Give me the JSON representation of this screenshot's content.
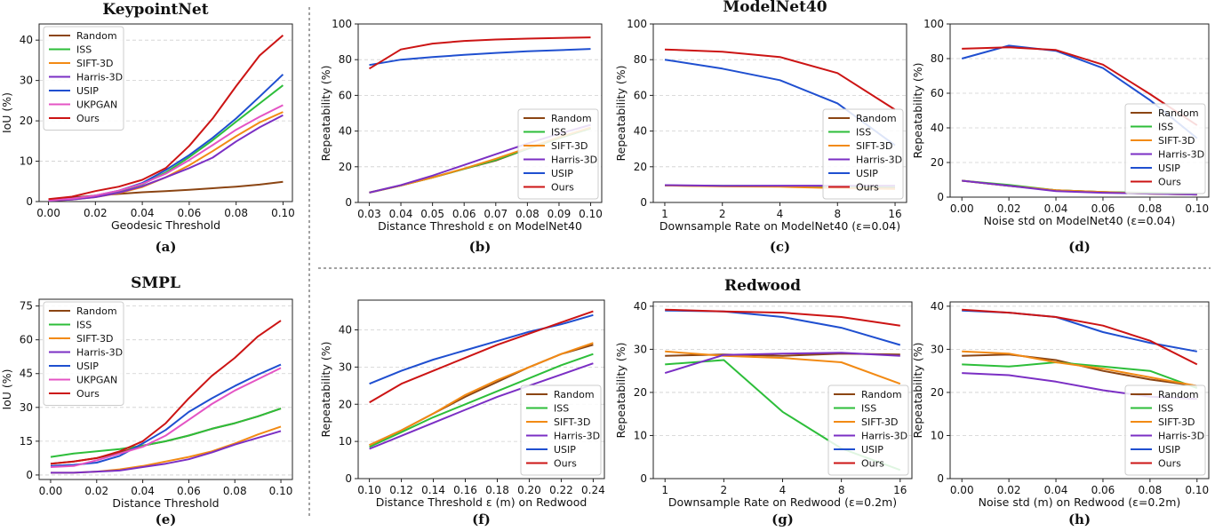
{
  "colors": {
    "Random": "#8B4513",
    "ISS": "#2DBE3A",
    "SIFT-3D": "#F28A14",
    "Harris-3D": "#7B2FC4",
    "USIP": "#1F4FD0",
    "UKPGAN": "#E454C4",
    "Ours": "#CC1414"
  },
  "section_titles": {
    "keypointnet": "KeypointNet",
    "modelnet40": "ModelNet40",
    "smpl": "SMPL",
    "redwood": "Redwood"
  },
  "chart_data": [
    {
      "id": "a",
      "type": "line",
      "caption": "(a)",
      "title": "",
      "xlabel": "Geodesic Threshold",
      "ylabel": "IoU (%)",
      "x": [
        0.0,
        0.01,
        0.02,
        0.03,
        0.04,
        0.05,
        0.06,
        0.07,
        0.08,
        0.09,
        0.1
      ],
      "xticks": [
        "0.00",
        "0.02",
        "0.04",
        "0.06",
        "0.08",
        "0.10"
      ],
      "xtick_values": [
        0.0,
        0.02,
        0.04,
        0.06,
        0.08,
        0.1
      ],
      "xlim": [
        -0.004,
        0.104
      ],
      "yticks": [
        "0",
        "10",
        "20",
        "30",
        "40"
      ],
      "ytick_values": [
        0,
        10,
        20,
        30,
        40
      ],
      "ylim": [
        0,
        44
      ],
      "legend_position": "top-left",
      "series": [
        {
          "name": "Random",
          "values": [
            0.5,
            1.0,
            1.5,
            1.9,
            2.3,
            2.6,
            2.9,
            3.3,
            3.7,
            4.2,
            4.9
          ]
        },
        {
          "name": "ISS",
          "values": [
            0.2,
            0.6,
            1.4,
            2.6,
            4.3,
            7.2,
            11.0,
            15.2,
            19.8,
            24.3,
            28.8
          ]
        },
        {
          "name": "SIFT-3D",
          "values": [
            0.2,
            0.5,
            1.1,
            2.1,
            3.6,
            6.0,
            9.0,
            12.5,
            16.2,
            19.6,
            22.2
          ]
        },
        {
          "name": "Harris-3D",
          "values": [
            0.2,
            0.5,
            1.1,
            2.2,
            3.8,
            6.0,
            8.3,
            10.9,
            14.9,
            18.4,
            21.4
          ]
        },
        {
          "name": "USIP",
          "values": [
            0.3,
            0.7,
            1.5,
            2.7,
            4.6,
            7.8,
            11.5,
            15.8,
            20.6,
            26.0,
            31.5
          ]
        },
        {
          "name": "UKPGAN",
          "values": [
            0.3,
            0.7,
            1.5,
            2.7,
            4.4,
            6.9,
            10.3,
            14.0,
            17.8,
            21.0,
            23.9
          ]
        },
        {
          "name": "Ours",
          "values": [
            0.6,
            1.2,
            2.6,
            3.7,
            5.4,
            8.3,
            13.8,
            20.6,
            28.6,
            36.2,
            41.2
          ]
        }
      ]
    },
    {
      "id": "b",
      "type": "line",
      "caption": "(b)",
      "title": "",
      "xlabel": "Distance Threshold ε on ModelNet40",
      "ylabel": "Repeatability (%)",
      "x": [
        0.03,
        0.04,
        0.05,
        0.06,
        0.07,
        0.08,
        0.09,
        0.1
      ],
      "xticks": [
        "0.03",
        "0.04",
        "0.05",
        "0.06",
        "0.07",
        "0.08",
        "0.09",
        "0.10"
      ],
      "xtick_values": [
        0.03,
        0.04,
        0.05,
        0.06,
        0.07,
        0.08,
        0.09,
        0.1
      ],
      "xlim": [
        0.0265,
        0.1035
      ],
      "yticks": [
        "0",
        "20",
        "40",
        "60",
        "80",
        "100"
      ],
      "ytick_values": [
        0,
        20,
        40,
        60,
        80,
        100
      ],
      "ylim": [
        0,
        100
      ],
      "legend_position": "lower-right",
      "series": [
        {
          "name": "Random",
          "values": [
            5.5,
            9.5,
            14.0,
            18.8,
            23.5,
            30.0,
            36.0,
            41.5
          ]
        },
        {
          "name": "ISS",
          "values": [
            5.5,
            9.5,
            14.0,
            18.8,
            23.8,
            30.0,
            36.0,
            41.5
          ]
        },
        {
          "name": "SIFT-3D",
          "values": [
            5.5,
            9.5,
            14.0,
            19.0,
            24.5,
            30.5,
            36.5,
            42.0
          ]
        },
        {
          "name": "Harris-3D",
          "values": [
            5.5,
            9.7,
            15.0,
            21.0,
            27.0,
            33.0,
            38.5,
            43.5
          ]
        },
        {
          "name": "USIP",
          "values": [
            77.0,
            80.0,
            81.5,
            82.7,
            83.8,
            84.7,
            85.3,
            86.0
          ]
        },
        {
          "name": "Ours",
          "values": [
            75.0,
            85.7,
            89.0,
            90.5,
            91.3,
            91.8,
            92.2,
            92.5
          ]
        }
      ]
    },
    {
      "id": "c",
      "type": "line",
      "caption": "(c)",
      "title": "",
      "xlabel": "Downsample Rate on ModelNet40 (ε=0.04)",
      "ylabel": "Repeatability (%)",
      "x": [
        0,
        1,
        2,
        3,
        4
      ],
      "xticks": [
        "1",
        "2",
        "4",
        "8",
        "16"
      ],
      "xtick_values": [
        0,
        1,
        2,
        3,
        4
      ],
      "xlim": [
        -0.2,
        4.2
      ],
      "yticks": [
        "0",
        "20",
        "40",
        "60",
        "80",
        "100"
      ],
      "ytick_values": [
        0,
        20,
        40,
        60,
        80,
        100
      ],
      "ylim": [
        0,
        100
      ],
      "legend_position": "lower-right",
      "series": [
        {
          "name": "Random",
          "values": [
            9.5,
            9.2,
            9.0,
            8.5,
            8.0
          ]
        },
        {
          "name": "ISS",
          "values": [
            9.5,
            9.3,
            9.2,
            9.0,
            9.0
          ]
        },
        {
          "name": "SIFT-3D",
          "values": [
            9.5,
            9.0,
            8.8,
            8.0,
            7.5
          ]
        },
        {
          "name": "Harris-3D",
          "values": [
            9.7,
            9.3,
            9.4,
            9.4,
            9.4
          ]
        },
        {
          "name": "USIP",
          "values": [
            80.0,
            75.0,
            68.5,
            55.5,
            32.0
          ]
        },
        {
          "name": "Ours",
          "values": [
            85.7,
            84.5,
            81.5,
            72.5,
            52.0
          ]
        }
      ]
    },
    {
      "id": "d",
      "type": "line",
      "caption": "(d)",
      "title": "",
      "xlabel": "Noise std on ModelNet40 (ε=0.04)",
      "ylabel": "Repeatability (%)",
      "x": [
        0.0,
        0.02,
        0.04,
        0.06,
        0.08,
        0.1
      ],
      "xticks": [
        "0.00",
        "0.02",
        "0.04",
        "0.06",
        "0.08",
        "0.10"
      ],
      "xtick_values": [
        0.0,
        0.02,
        0.04,
        0.06,
        0.08,
        0.1
      ],
      "xlim": [
        -0.005,
        0.105
      ],
      "yticks": [
        "0",
        "20",
        "40",
        "60",
        "80",
        "100"
      ],
      "ytick_values": [
        0,
        20,
        40,
        60,
        80,
        100
      ],
      "ylim": [
        0,
        100
      ],
      "legend_position": "lower-right",
      "series": [
        {
          "name": "Random",
          "values": [
            9.5,
            6.5,
            4.0,
            3.0,
            2.0,
            1.5
          ]
        },
        {
          "name": "ISS",
          "values": [
            9.5,
            7.0,
            4.0,
            3.0,
            2.5,
            2.0
          ]
        },
        {
          "name": "SIFT-3D",
          "values": [
            9.5,
            6.5,
            4.0,
            3.0,
            2.0,
            1.5
          ]
        },
        {
          "name": "Harris-3D",
          "values": [
            9.5,
            6.5,
            3.5,
            2.5,
            2.0,
            1.5
          ]
        },
        {
          "name": "USIP",
          "values": [
            80.0,
            87.5,
            84.5,
            74.5,
            56.0,
            34.0
          ]
        },
        {
          "name": "Ours",
          "values": [
            85.7,
            86.5,
            85.0,
            76.5,
            59.5,
            41.5
          ]
        }
      ]
    },
    {
      "id": "e",
      "type": "line",
      "caption": "(e)",
      "title": "",
      "xlabel": "Distance Threshold",
      "ylabel": "IoU (%)",
      "x": [
        0.0,
        0.01,
        0.02,
        0.03,
        0.04,
        0.05,
        0.06,
        0.07,
        0.08,
        0.09,
        0.1
      ],
      "xticks": [
        "0.00",
        "0.02",
        "0.04",
        "0.06",
        "0.08",
        "0.10"
      ],
      "xtick_values": [
        0.0,
        0.02,
        0.04,
        0.06,
        0.08,
        0.1
      ],
      "xlim": [
        -0.005,
        0.105
      ],
      "yticks": [
        "0",
        "15",
        "30",
        "45",
        "60",
        "75"
      ],
      "ytick_values": [
        0,
        15,
        30,
        45,
        60,
        75
      ],
      "ylim": [
        -2,
        78
      ],
      "legend_position": "top-left",
      "series": [
        {
          "name": "Random",
          "values": [
            5.0,
            6.0,
            7.5,
            10.0,
            13.0,
            15.0,
            17.5,
            20.5,
            23.0,
            26.0,
            29.5
          ]
        },
        {
          "name": "ISS",
          "values": [
            8.0,
            9.5,
            10.5,
            11.5,
            13.0,
            15.0,
            17.5,
            20.5,
            23.0,
            26.0,
            29.5
          ]
        },
        {
          "name": "SIFT-3D",
          "values": [
            1.0,
            1.0,
            1.5,
            2.5,
            4.0,
            6.0,
            8.0,
            10.5,
            14.0,
            18.0,
            21.5
          ]
        },
        {
          "name": "Harris-3D",
          "values": [
            1.0,
            1.0,
            1.5,
            2.0,
            3.5,
            5.0,
            7.0,
            10.0,
            13.5,
            16.5,
            19.5
          ]
        },
        {
          "name": "USIP",
          "values": [
            4.0,
            4.5,
            5.5,
            8.5,
            14.0,
            20.0,
            28.0,
            34.0,
            39.5,
            44.5,
            49.0
          ]
        },
        {
          "name": "UKPGAN",
          "values": [
            3.5,
            4.0,
            6.5,
            9.5,
            12.5,
            17.5,
            24.5,
            31.5,
            37.5,
            42.5,
            47.5
          ]
        },
        {
          "name": "Ours",
          "values": [
            5.0,
            6.0,
            7.5,
            10.5,
            15.0,
            23.0,
            34.0,
            44.0,
            52.0,
            61.5,
            68.5
          ]
        }
      ]
    },
    {
      "id": "f",
      "type": "line",
      "caption": "(f)",
      "title": "",
      "xlabel": "Distance Threshold ε (m) on Redwood",
      "ylabel": "Repeatability (%)",
      "x": [
        0.1,
        0.12,
        0.14,
        0.16,
        0.18,
        0.2,
        0.22,
        0.24
      ],
      "xticks": [
        "0.10",
        "0.12",
        "0.14",
        "0.16",
        "0.18",
        "0.20",
        "0.22",
        "0.24"
      ],
      "xtick_values": [
        0.1,
        0.12,
        0.14,
        0.16,
        0.18,
        0.2,
        0.22,
        0.24
      ],
      "xlim": [
        0.093,
        0.247
      ],
      "yticks": [
        "0",
        "10",
        "20",
        "30",
        "40"
      ],
      "ytick_values": [
        0,
        10,
        20,
        30,
        40
      ],
      "ylim": [
        0,
        48
      ],
      "legend_position": "lower-right",
      "series": [
        {
          "name": "Random",
          "values": [
            9.0,
            13.0,
            17.5,
            22.0,
            26.0,
            30.0,
            33.5,
            36.0
          ]
        },
        {
          "name": "ISS",
          "values": [
            8.5,
            12.5,
            16.5,
            20.0,
            23.5,
            27.0,
            30.5,
            33.5
          ]
        },
        {
          "name": "SIFT-3D",
          "values": [
            9.0,
            13.0,
            17.5,
            22.5,
            26.5,
            30.0,
            33.5,
            36.5
          ]
        },
        {
          "name": "Harris-3D",
          "values": [
            8.0,
            11.5,
            15.0,
            18.5,
            22.0,
            25.0,
            28.0,
            31.0
          ]
        },
        {
          "name": "USIP",
          "values": [
            25.5,
            29.0,
            32.0,
            34.5,
            37.0,
            39.5,
            41.5,
            44.0
          ]
        },
        {
          "name": "Ours",
          "values": [
            20.5,
            25.5,
            29.0,
            32.5,
            36.0,
            39.0,
            42.0,
            45.0
          ]
        }
      ]
    },
    {
      "id": "g",
      "type": "line",
      "caption": "(g)",
      "title": "",
      "xlabel": "Downsample Rate on Redwood (ε=0.2m)",
      "ylabel": "Repeatability (%)",
      "x": [
        0,
        1,
        2,
        3,
        4
      ],
      "xticks": [
        "1",
        "2",
        "4",
        "8",
        "16"
      ],
      "xtick_values": [
        0,
        1,
        2,
        3,
        4
      ],
      "xlim": [
        -0.2,
        4.2
      ],
      "yticks": [
        "0",
        "10",
        "20",
        "30",
        "40"
      ],
      "ytick_values": [
        0,
        10,
        20,
        30,
        40
      ],
      "ylim": [
        0,
        41
      ],
      "legend_position": "lower-right",
      "series": [
        {
          "name": "Random",
          "values": [
            28.5,
            28.8,
            28.5,
            29.0,
            28.8
          ]
        },
        {
          "name": "ISS",
          "values": [
            26.5,
            27.5,
            15.5,
            7.0,
            2.0
          ]
        },
        {
          "name": "SIFT-3D",
          "values": [
            29.5,
            28.5,
            28.0,
            27.0,
            22.0
          ]
        },
        {
          "name": "Harris-3D",
          "values": [
            24.5,
            28.7,
            29.0,
            29.2,
            28.5
          ]
        },
        {
          "name": "USIP",
          "values": [
            39.0,
            38.8,
            37.5,
            35.0,
            31.0
          ]
        },
        {
          "name": "Ours",
          "values": [
            39.2,
            38.8,
            38.5,
            37.5,
            35.5
          ]
        }
      ]
    },
    {
      "id": "h",
      "type": "line",
      "caption": "(h)",
      "title": "",
      "xlabel": "Noise std (m) on Redwood (ε=0.2m)",
      "ylabel": "Repeatability (%)",
      "x": [
        0.0,
        0.02,
        0.04,
        0.06,
        0.08,
        0.1
      ],
      "xticks": [
        "0.00",
        "0.02",
        "0.04",
        "0.06",
        "0.08",
        "0.10"
      ],
      "xtick_values": [
        0.0,
        0.02,
        0.04,
        0.06,
        0.08,
        0.1
      ],
      "xlim": [
        -0.005,
        0.105
      ],
      "yticks": [
        "0",
        "10",
        "20",
        "30",
        "40"
      ],
      "ytick_values": [
        0,
        10,
        20,
        30,
        40
      ],
      "ylim": [
        0,
        41
      ],
      "legend_position": "lower-right",
      "series": [
        {
          "name": "Random",
          "values": [
            28.5,
            28.8,
            27.5,
            25.0,
            23.0,
            21.5
          ]
        },
        {
          "name": "ISS",
          "values": [
            26.5,
            26.0,
            27.0,
            26.0,
            25.0,
            21.0
          ]
        },
        {
          "name": "SIFT-3D",
          "values": [
            29.5,
            29.0,
            27.0,
            25.5,
            23.5,
            21.5
          ]
        },
        {
          "name": "Harris-3D",
          "values": [
            24.5,
            24.0,
            22.5,
            20.5,
            19.0,
            18.5
          ]
        },
        {
          "name": "USIP",
          "values": [
            39.0,
            38.5,
            37.5,
            34.0,
            31.5,
            29.5
          ]
        },
        {
          "name": "Ours",
          "values": [
            39.2,
            38.5,
            37.5,
            35.5,
            32.0,
            26.5
          ]
        }
      ]
    }
  ]
}
